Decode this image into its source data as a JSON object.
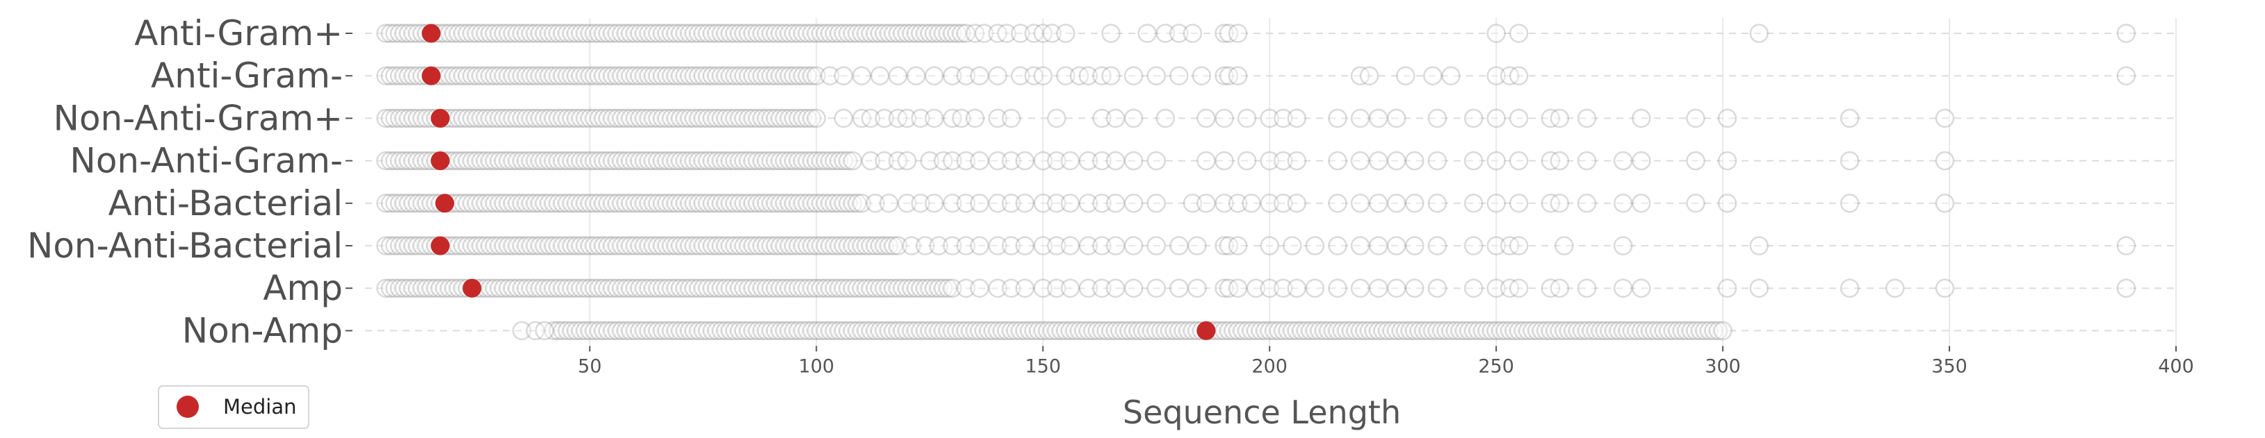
{
  "chart_data": {
    "type": "scatter",
    "subtype": "strip-plot",
    "xlabel": "Sequence Length",
    "ylabel": "",
    "xlim": [
      5,
      400
    ],
    "x_ticks": [
      50,
      100,
      150,
      200,
      250,
      300,
      350,
      400
    ],
    "grid": true,
    "legend": {
      "position": "bottom-left",
      "entries": [
        {
          "label": "Median",
          "color": "#c62828",
          "marker": "circle"
        }
      ]
    },
    "colors": {
      "median": "#c62828",
      "points": "#7a7a7a"
    },
    "categories": [
      "Anti-Gram+",
      "Anti-Gram-",
      "Non-Anti-Gram+",
      "Non-Anti-Gram-",
      "Anti-Bacterial",
      "Non-Anti-Bacterial",
      "Amp",
      "Non-Amp"
    ],
    "series": [
      {
        "label": "Anti-Gram+",
        "median": 15,
        "range": [
          5,
          133
        ],
        "outliers": [
          135,
          137,
          140,
          142,
          145,
          148,
          150,
          152,
          155,
          165,
          173,
          177,
          180,
          183,
          190,
          191,
          193,
          250,
          255,
          308,
          389
        ]
      },
      {
        "label": "Anti-Gram-",
        "median": 15,
        "range": [
          5,
          100
        ],
        "outliers": [
          103,
          106,
          110,
          114,
          118,
          122,
          126,
          130,
          133,
          136,
          140,
          145,
          148,
          150,
          155,
          158,
          160,
          163,
          165,
          170,
          175,
          180,
          185,
          190,
          191,
          193,
          220,
          222,
          230,
          236,
          240,
          250,
          253,
          255,
          389
        ]
      },
      {
        "label": "Non-Anti-Gram+",
        "median": 17,
        "range": [
          5,
          100
        ],
        "outliers": [
          106,
          110,
          112,
          115,
          118,
          120,
          123,
          126,
          130,
          132,
          135,
          140,
          143,
          153,
          163,
          166,
          170,
          177,
          186,
          190,
          195,
          200,
          203,
          206,
          215,
          220,
          224,
          228,
          237,
          245,
          250,
          255,
          262,
          264,
          270,
          282,
          294,
          301,
          328,
          349
        ]
      },
      {
        "label": "Non-Anti-Gram-",
        "median": 17,
        "range": [
          5,
          108
        ],
        "outliers": [
          112,
          115,
          118,
          120,
          125,
          128,
          130,
          133,
          136,
          140,
          143,
          146,
          150,
          153,
          156,
          160,
          163,
          166,
          170,
          175,
          186,
          190,
          195,
          200,
          203,
          206,
          215,
          220,
          224,
          228,
          232,
          237,
          245,
          250,
          255,
          262,
          264,
          270,
          278,
          282,
          294,
          301,
          328,
          349
        ]
      },
      {
        "label": "Anti-Bacterial",
        "median": 18,
        "range": [
          5,
          110
        ],
        "outliers": [
          113,
          116,
          120,
          123,
          126,
          130,
          133,
          136,
          140,
          143,
          146,
          150,
          153,
          156,
          160,
          163,
          166,
          170,
          175,
          183,
          186,
          190,
          193,
          196,
          200,
          203,
          206,
          215,
          220,
          224,
          228,
          232,
          237,
          245,
          250,
          255,
          262,
          264,
          270,
          278,
          282,
          294,
          301,
          328,
          349
        ]
      },
      {
        "label": "Non-Anti-Bacterial",
        "median": 17,
        "range": [
          5,
          118
        ],
        "outliers": [
          121,
          124,
          127,
          130,
          133,
          136,
          140,
          143,
          146,
          150,
          153,
          156,
          160,
          163,
          166,
          170,
          175,
          180,
          184,
          190,
          191,
          193,
          200,
          205,
          210,
          215,
          220,
          224,
          228,
          232,
          237,
          245,
          250,
          253,
          255,
          265,
          278,
          308,
          389
        ]
      },
      {
        "label": "Amp",
        "median": 24,
        "range": [
          5,
          130
        ],
        "outliers": [
          133,
          136,
          140,
          143,
          146,
          150,
          153,
          156,
          160,
          163,
          166,
          170,
          175,
          180,
          184,
          190,
          191,
          193,
          197,
          200,
          203,
          206,
          210,
          215,
          220,
          224,
          228,
          232,
          237,
          245,
          250,
          253,
          255,
          262,
          264,
          270,
          278,
          282,
          301,
          308,
          328,
          338,
          349,
          389
        ]
      },
      {
        "label": "Non-Amp",
        "median": 186,
        "range": [
          42,
          300
        ],
        "outliers": [
          35,
          38,
          40
        ]
      }
    ]
  }
}
